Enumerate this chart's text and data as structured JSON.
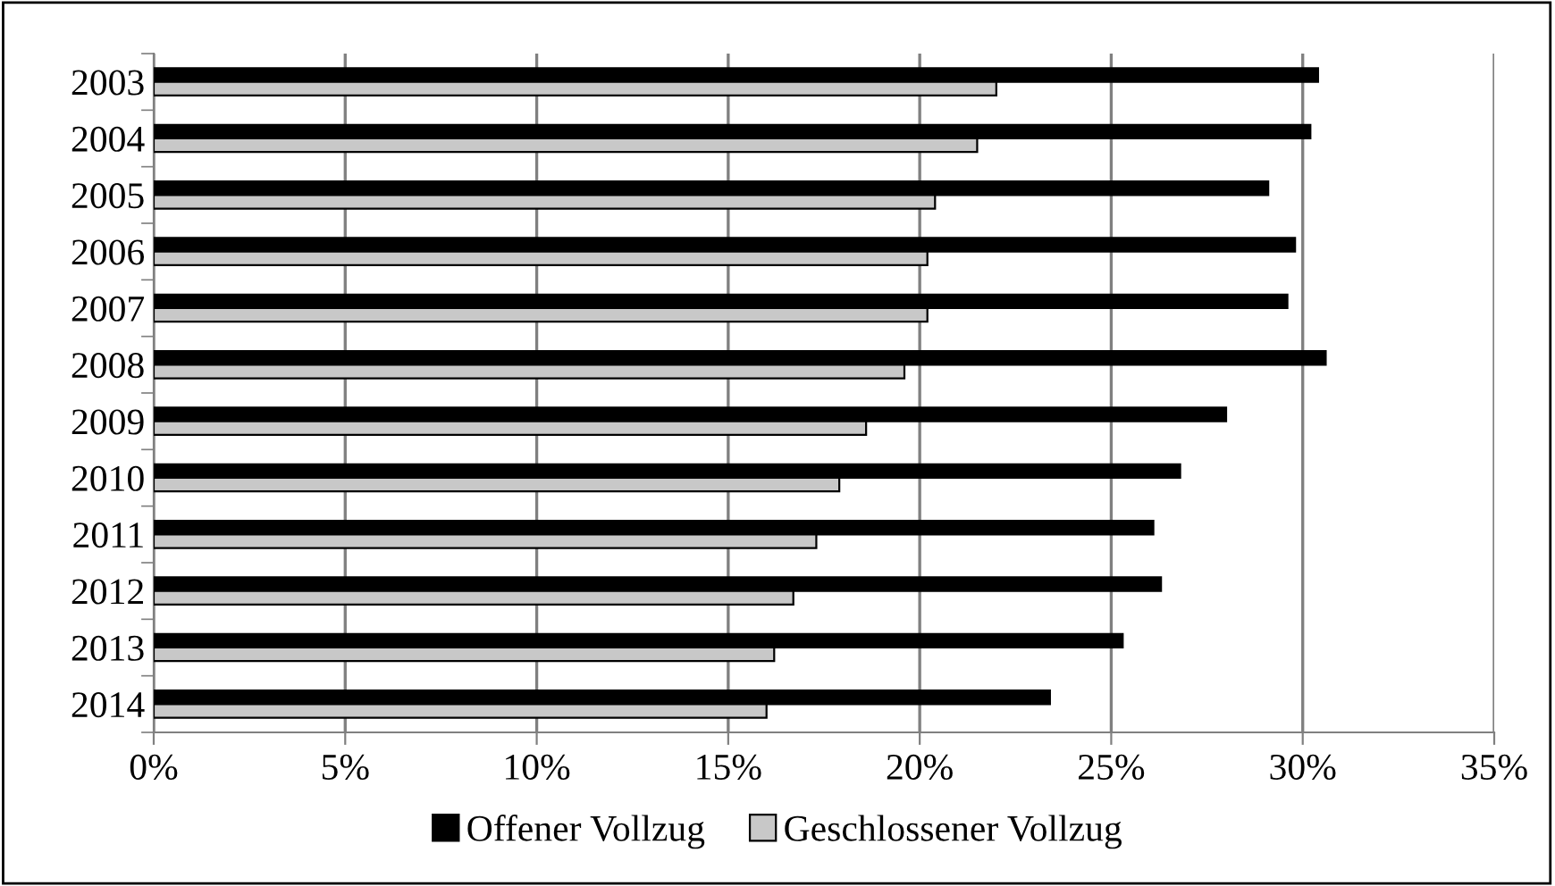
{
  "chart_data": {
    "type": "bar",
    "orientation": "horizontal",
    "categories": [
      "2003",
      "2004",
      "2005",
      "2006",
      "2007",
      "2008",
      "2009",
      "2010",
      "2011",
      "2012",
      "2013",
      "2014"
    ],
    "series": [
      {
        "name": "Offener Vollzug",
        "color": "#000000",
        "values": [
          30.4,
          30.2,
          29.1,
          29.8,
          29.6,
          30.6,
          28.0,
          26.8,
          26.1,
          26.3,
          25.3,
          23.4
        ]
      },
      {
        "name": "Geschlossener Vollzug",
        "color": "#c8c8c8",
        "values": [
          22.0,
          21.5,
          20.4,
          20.2,
          20.2,
          19.6,
          18.6,
          17.9,
          17.3,
          16.7,
          16.2,
          16.0
        ]
      }
    ],
    "xlim": [
      0,
      35
    ],
    "xticks": [
      {
        "value": 0,
        "label": "0%"
      },
      {
        "value": 5,
        "label": "5%"
      },
      {
        "value": 10,
        "label": "10%"
      },
      {
        "value": 15,
        "label": "15%"
      },
      {
        "value": 20,
        "label": "20%"
      },
      {
        "value": 25,
        "label": "25%"
      },
      {
        "value": 30,
        "label": "30%"
      },
      {
        "value": 35,
        "label": "35%"
      }
    ],
    "grid": "x",
    "legend": "bottom"
  }
}
